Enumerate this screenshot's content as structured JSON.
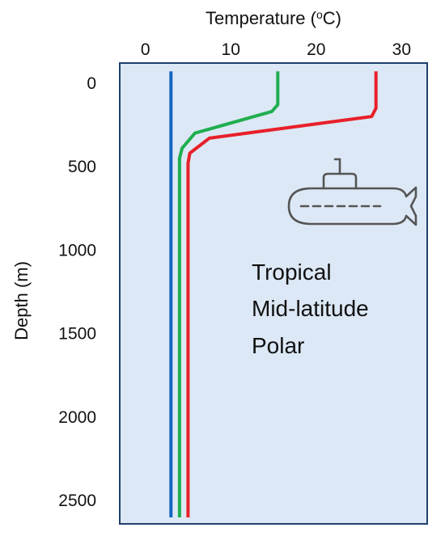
{
  "chart_data": {
    "type": "line",
    "title": "",
    "xlabel": "Temperature (oC)",
    "xlabel_main": "Temperature (",
    "xlabel_sup": "o",
    "xlabel_end": "C)",
    "ylabel": "Depth (m)",
    "x_axis_position": "top",
    "y_inverted": true,
    "xlim": [
      -3,
      33
    ],
    "ylim": [
      -120,
      2640
    ],
    "xticks": [
      0,
      10,
      20,
      30
    ],
    "yticks": [
      0,
      500,
      1000,
      1500,
      2000,
      2500
    ],
    "grid": false,
    "legend_placement": "center-right",
    "series": [
      {
        "name": "Tropical",
        "color": "#e8202a",
        "points": [
          [
            27,
            -70
          ],
          [
            27,
            150
          ],
          [
            26.5,
            200
          ],
          [
            7.5,
            330
          ],
          [
            5.2,
            420
          ],
          [
            5,
            480
          ],
          [
            5,
            2650
          ]
        ]
      },
      {
        "name": "Mid-latitude",
        "color": "#1fae4f",
        "points": [
          [
            15.5,
            -70
          ],
          [
            15.5,
            130
          ],
          [
            14.8,
            170
          ],
          [
            5.8,
            300
          ],
          [
            4.3,
            390
          ],
          [
            4,
            450
          ],
          [
            4,
            2650
          ]
        ]
      },
      {
        "name": "Polar",
        "color": "#1565c0",
        "points": [
          [
            3,
            -70
          ],
          [
            3,
            2650
          ]
        ]
      }
    ]
  },
  "colors": {
    "plot_background": "#dce8f5",
    "frame": "#1f3f6e",
    "submarine_stroke": "#555555"
  },
  "icons": [
    "submarine-icon"
  ]
}
